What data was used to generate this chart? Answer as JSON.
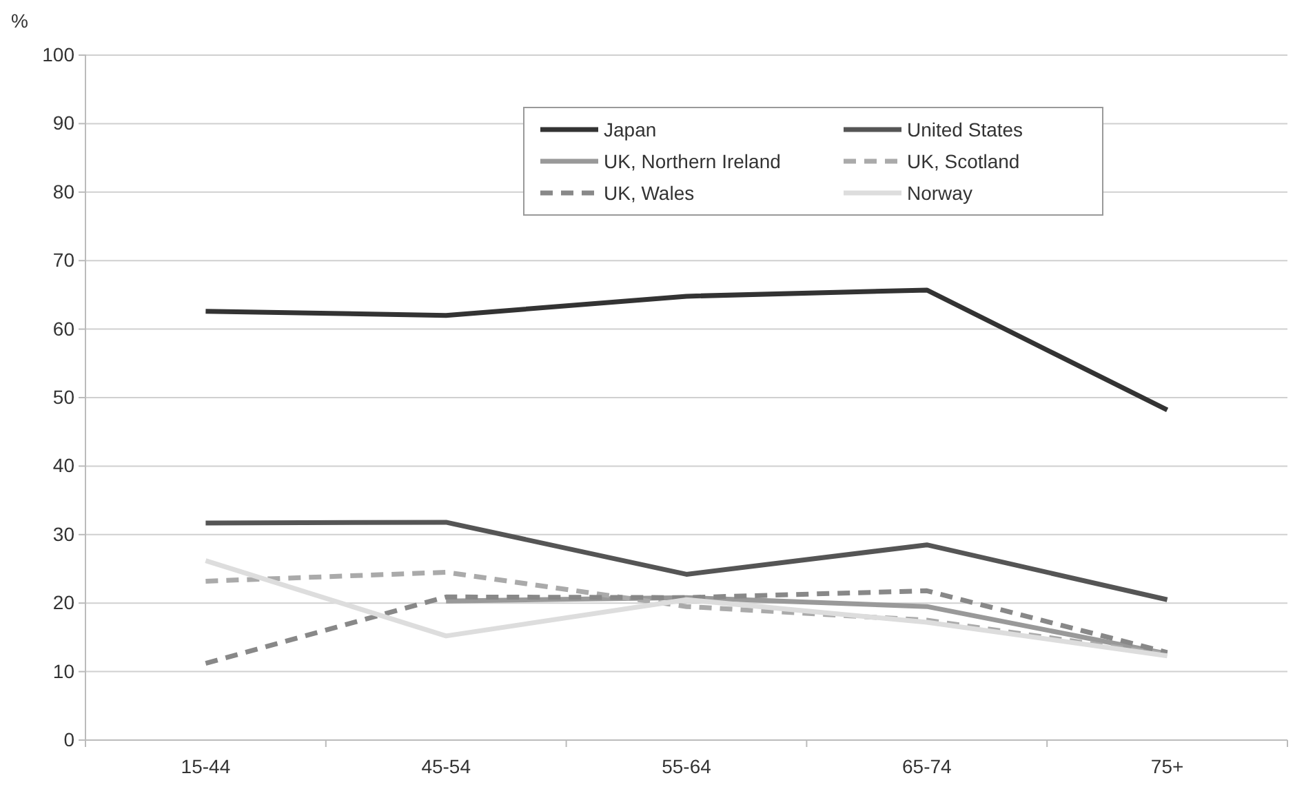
{
  "chart_data": {
    "type": "line",
    "ylabel": "%",
    "categories": [
      "15-44",
      "45-54",
      "55-64",
      "65-74",
      "75+"
    ],
    "ylim": [
      0,
      100
    ],
    "yticks": [
      0,
      10,
      20,
      30,
      40,
      50,
      60,
      70,
      80,
      90,
      100
    ],
    "grid": "y",
    "legend": "top",
    "marker": "none",
    "series": [
      {
        "name": "Japan",
        "color": "#333333",
        "line_style": "solid",
        "values": [
          62.6,
          62,
          64.8,
          65.7,
          48.2
        ]
      },
      {
        "name": "United States",
        "color": "#555555",
        "line_style": "solid",
        "values": [
          31.7,
          31.8,
          24.2,
          28.5,
          20.5
        ]
      },
      {
        "name": "UK, Northern Ireland",
        "color": "#999999",
        "line_style": "solid",
        "values": [
          null,
          20.3,
          20.8,
          19.5,
          12.6
        ]
      },
      {
        "name": "UK, Scotland",
        "color": "#aaaaaa",
        "line_style": "dashed",
        "values": [
          23.2,
          24.5,
          19.5,
          17.5,
          12.5
        ]
      },
      {
        "name": "UK, Wales",
        "color": "#888888",
        "line_style": "dashed",
        "values": [
          11.2,
          20.9,
          20.8,
          21.8,
          12.8
        ]
      },
      {
        "name": "Norway",
        "color": "#dddddd",
        "line_style": "solid",
        "values": [
          26.2,
          15.2,
          20.5,
          17.2,
          12.3
        ]
      }
    ]
  }
}
